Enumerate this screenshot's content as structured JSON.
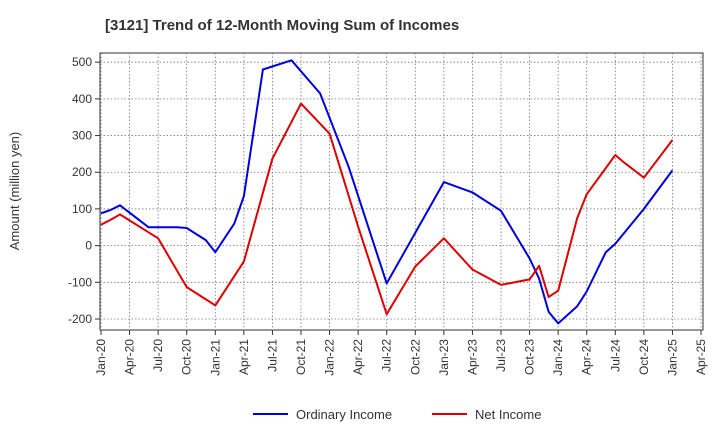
{
  "chart_data": {
    "type": "line",
    "title": "[3121]  Trend of 12-Month Moving Sum of Incomes",
    "ylabel": "Amount (million yen)",
    "xlabel": "",
    "ylim": [
      -230,
      525
    ],
    "yticks": [
      500,
      400,
      300,
      200,
      100,
      0,
      -100,
      -200
    ],
    "xticks": [
      "Jan-20",
      "Apr-20",
      "Jul-20",
      "Oct-20",
      "Jan-21",
      "Apr-21",
      "Jul-21",
      "Oct-21",
      "Jan-22",
      "Apr-22",
      "Jul-22",
      "Oct-22",
      "Jan-23",
      "Apr-23",
      "Jul-23",
      "Oct-23",
      "Jan-24",
      "Apr-24",
      "Jul-24",
      "Oct-24",
      "Jan-25",
      "Apr-25"
    ],
    "grid": true,
    "legend_position": "bottom",
    "series": [
      {
        "name": "Ordinary Income",
        "color": "#0000dd",
        "points": [
          [
            "Jan-20",
            88
          ],
          [
            "Feb-20",
            97
          ],
          [
            "Mar-20",
            110
          ],
          [
            "Jun-20",
            50
          ],
          [
            "Sep-20",
            50
          ],
          [
            "Oct-20",
            48
          ],
          [
            "Dec-20",
            15
          ],
          [
            "Jan-21",
            -18
          ],
          [
            "Mar-21",
            60
          ],
          [
            "Apr-21",
            135
          ],
          [
            "Jun-21",
            480
          ],
          [
            "Sep-21",
            505
          ],
          [
            "Dec-21",
            415
          ],
          [
            "Mar-22",
            215
          ],
          [
            "Jul-22",
            -103
          ],
          [
            "Oct-22",
            35
          ],
          [
            "Jan-23",
            173
          ],
          [
            "Apr-23",
            145
          ],
          [
            "Jul-23",
            95
          ],
          [
            "Oct-23",
            -35
          ],
          [
            "Nov-23",
            -90
          ],
          [
            "Dec-23",
            -180
          ],
          [
            "Jan-24",
            -212
          ],
          [
            "Mar-24",
            -165
          ],
          [
            "Apr-24",
            -125
          ],
          [
            "Jun-24",
            -18
          ],
          [
            "Jul-24",
            5
          ],
          [
            "Oct-24",
            100
          ],
          [
            "Jan-25",
            205
          ]
        ]
      },
      {
        "name": "Net Income",
        "color": "#dd0000",
        "points": [
          [
            "Jan-20",
            57
          ],
          [
            "Feb-20",
            70
          ],
          [
            "Mar-20",
            85
          ],
          [
            "Jul-20",
            20
          ],
          [
            "Oct-20",
            -113
          ],
          [
            "Jan-21",
            -163
          ],
          [
            "Apr-21",
            -43
          ],
          [
            "Jul-21",
            237
          ],
          [
            "Oct-21",
            387
          ],
          [
            "Jan-22",
            305
          ],
          [
            "Apr-22",
            52
          ],
          [
            "Jul-22",
            -187
          ],
          [
            "Oct-22",
            -57
          ],
          [
            "Jan-23",
            20
          ],
          [
            "Apr-23",
            -65
          ],
          [
            "Jul-23",
            -107
          ],
          [
            "Oct-23",
            -92
          ],
          [
            "Nov-23",
            -55
          ],
          [
            "Dec-23",
            -140
          ],
          [
            "Jan-24",
            -123
          ],
          [
            "Mar-24",
            75
          ],
          [
            "Apr-24",
            140
          ],
          [
            "Jul-24",
            247
          ],
          [
            "Aug-24",
            225
          ],
          [
            "Oct-24",
            185
          ],
          [
            "Jan-25",
            288
          ]
        ]
      }
    ]
  }
}
